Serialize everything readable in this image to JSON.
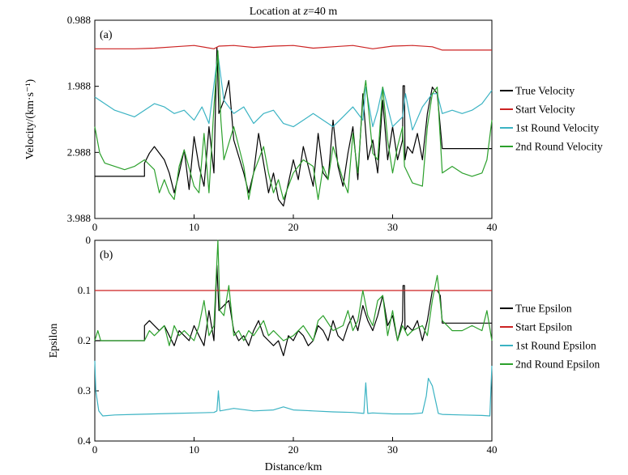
{
  "chart_data": {
    "title": "Location at z=40 m",
    "title_parts": {
      "prefix": "Location at ",
      "italic": "z",
      "suffix": "=40 m"
    },
    "xlabel": "Distance/km",
    "panels": [
      {
        "id": "velocity",
        "type": "line",
        "panel_label": "(a)",
        "ylabel": "Velocity/(km·s⁻¹)",
        "xlim": [
          0,
          40
        ],
        "ylim": [
          0.988,
          3.988
        ],
        "y_inverted": true,
        "xticks": [
          0,
          10,
          20,
          30,
          40
        ],
        "yticks": [
          0.988,
          1.988,
          2.988,
          3.988
        ],
        "ytick_labels": [
          "0.988",
          "1.988",
          "2.988",
          "3.988"
        ],
        "legend_position": "right",
        "series": [
          {
            "name": "True Velocity",
            "color": "#000000",
            "x": [
              0,
              5,
              5,
              5.5,
              6,
              7,
              7.5,
              8,
              8.5,
              9,
              9.5,
              10,
              10.5,
              11,
              11.5,
              12,
              12.3,
              12.5,
              13,
              13.5,
              14,
              15,
              15.5,
              16,
              16.5,
              17,
              17.5,
              18,
              18.5,
              19,
              20,
              20.5,
              21,
              21.5,
              22,
              22.5,
              23,
              23.5,
              24,
              24.5,
              25,
              25.5,
              26,
              26.5,
              27,
              27.5,
              28,
              28.5,
              29,
              29.5,
              30,
              30.5,
              31,
              31.05,
              31.1,
              31.2,
              31.25,
              31.5,
              32,
              32.5,
              33,
              33.5,
              34,
              34.5,
              35,
              40
            ],
            "values": [
              3.35,
              3.35,
              3.15,
              3.0,
              2.9,
              3.1,
              3.3,
              3.6,
              3.3,
              2.95,
              3.55,
              2.75,
              3.2,
              3.5,
              2.6,
              3.3,
              1.4,
              2.4,
              2.2,
              1.9,
              2.8,
              3.3,
              3.6,
              3.3,
              2.7,
              3.15,
              3.6,
              3.3,
              3.7,
              3.8,
              3.1,
              3.4,
              2.9,
              3.2,
              3.5,
              2.7,
              3.3,
              3.4,
              2.5,
              3.2,
              3.5,
              3.0,
              2.6,
              3.4,
              2.1,
              3.1,
              2.8,
              3.3,
              2.2,
              3.1,
              2.6,
              3.1,
              2.8,
              1.98,
              1.98,
              1.98,
              3.1,
              2.9,
              3.0,
              2.7,
              3.1,
              2.4,
              2.0,
              2.1,
              2.93,
              2.93
            ]
          },
          {
            "name": "Start Velocity",
            "color": "#cc2222",
            "x": [
              0,
              4,
              6,
              8,
              10,
              12,
              12.5,
              14,
              16,
              18,
              20,
              22,
              24,
              26,
              28,
              30,
              32,
              34,
              35,
              40
            ],
            "values": [
              1.42,
              1.42,
              1.41,
              1.39,
              1.37,
              1.42,
              1.38,
              1.37,
              1.4,
              1.38,
              1.37,
              1.41,
              1.39,
              1.37,
              1.42,
              1.38,
              1.37,
              1.39,
              1.44,
              1.44
            ]
          },
          {
            "name": "1st Round Velocity",
            "color": "#3bb3c3",
            "x": [
              0,
              1,
              2,
              3,
              4,
              5,
              6,
              7,
              8,
              9,
              10,
              10.8,
              11.5,
              12.4,
              13,
              14,
              15,
              16,
              17,
              18,
              19,
              20,
              21,
              22,
              23,
              24,
              25,
              26,
              27,
              27.3,
              28,
              28.5,
              29,
              30,
              31,
              31.3,
              32,
              33,
              33.5,
              34,
              34.5,
              35,
              36,
              37,
              38,
              39,
              40
            ],
            "values": [
              2.15,
              2.25,
              2.35,
              2.4,
              2.45,
              2.35,
              2.25,
              2.3,
              2.4,
              2.35,
              2.5,
              2.3,
              2.55,
              1.5,
              2.2,
              2.4,
              2.3,
              2.55,
              2.4,
              2.35,
              2.55,
              2.6,
              2.5,
              2.4,
              2.5,
              2.6,
              2.45,
              2.3,
              2.5,
              2.0,
              2.6,
              2.35,
              2.0,
              2.6,
              2.45,
              2.1,
              2.65,
              2.3,
              2.2,
              2.1,
              2.1,
              2.4,
              2.35,
              2.4,
              2.35,
              2.25,
              2.05
            ]
          },
          {
            "name": "2nd Round Velocity",
            "color": "#2ca02c",
            "x": [
              0,
              0.5,
              1,
              2,
              3,
              4,
              5,
              6,
              6.5,
              7,
              7.5,
              8,
              8.5,
              9,
              10,
              10.5,
              11,
              11.5,
              12,
              12.4,
              12.7,
              13,
              14,
              15,
              15.5,
              16,
              17,
              17.5,
              18,
              18.5,
              19,
              20,
              21,
              22,
              22.5,
              23,
              23.5,
              24,
              25,
              25.5,
              26,
              26.5,
              27,
              27.3,
              28,
              28.5,
              29,
              29.5,
              30,
              30.5,
              31,
              31.2,
              32,
              33,
              33.5,
              34,
              34.5,
              35,
              36,
              37,
              38,
              39,
              39.5,
              40
            ],
            "values": [
              2.6,
              3.0,
              3.15,
              3.2,
              3.25,
              3.2,
              3.1,
              3.25,
              3.6,
              3.4,
              3.6,
              3.7,
              3.2,
              2.95,
              3.5,
              3.6,
              2.7,
              3.6,
              2.3,
              1.45,
              2.5,
              3.1,
              2.6,
              3.2,
              3.7,
              3.3,
              2.9,
              3.3,
              3.6,
              3.4,
              3.7,
              3.3,
              3.1,
              3.2,
              3.7,
              3.2,
              3.4,
              2.9,
              3.4,
              3.6,
              2.7,
              3.3,
              2.2,
              1.9,
              3.0,
              3.1,
              2.0,
              2.8,
              3.3,
              2.9,
              2.6,
              3.2,
              3.45,
              3.5,
              2.6,
              2.1,
              2.0,
              3.3,
              3.2,
              3.3,
              3.35,
              3.3,
              3.1,
              2.5
            ]
          }
        ]
      },
      {
        "id": "epsilon",
        "type": "line",
        "panel_label": "(b)",
        "ylabel": "Epsilon",
        "xlim": [
          0,
          40
        ],
        "ylim": [
          0,
          0.4
        ],
        "y_inverted": true,
        "xticks": [
          0,
          10,
          20,
          30,
          40
        ],
        "yticks": [
          0,
          0.1,
          0.2,
          0.3,
          0.4
        ],
        "ytick_labels": [
          "0",
          "0.1",
          "0.2",
          "0.3",
          "0.4"
        ],
        "legend_position": "right",
        "series": [
          {
            "name": "True Epsilon",
            "color": "#000000",
            "x": [
              0,
              5,
              5,
              5.5,
              6,
              6.5,
              7,
              7.5,
              8,
              8.5,
              9,
              9.5,
              10,
              10.5,
              11,
              11.5,
              12,
              12.3,
              12.5,
              13,
              13.5,
              14,
              14.5,
              15,
              15.5,
              16,
              16.5,
              17,
              17.5,
              18,
              18.5,
              19,
              19.5,
              20,
              20.5,
              21,
              21.5,
              22,
              22.5,
              23,
              23.5,
              24,
              24.5,
              25,
              25.5,
              26,
              26.5,
              27,
              27.5,
              28,
              28.5,
              29,
              29.5,
              30,
              30.5,
              31,
              31.05,
              31.1,
              31.2,
              31.25,
              31.5,
              32,
              32.5,
              33,
              33.5,
              34,
              34.5,
              34.8,
              35,
              40
            ],
            "values": [
              0.2,
              0.2,
              0.17,
              0.16,
              0.17,
              0.18,
              0.17,
              0.19,
              0.21,
              0.18,
              0.19,
              0.2,
              0.17,
              0.19,
              0.21,
              0.14,
              0.2,
              0.05,
              0.14,
              0.13,
              0.12,
              0.18,
              0.2,
              0.19,
              0.21,
              0.18,
              0.16,
              0.19,
              0.2,
              0.21,
              0.2,
              0.23,
              0.19,
              0.2,
              0.18,
              0.19,
              0.21,
              0.2,
              0.17,
              0.18,
              0.2,
              0.16,
              0.19,
              0.2,
              0.17,
              0.15,
              0.18,
              0.13,
              0.16,
              0.18,
              0.15,
              0.11,
              0.17,
              0.15,
              0.2,
              0.16,
              0.09,
              0.09,
              0.09,
              0.18,
              0.17,
              0.18,
              0.16,
              0.2,
              0.16,
              0.1,
              0.1,
              0.11,
              0.165,
              0.165
            ]
          },
          {
            "name": "Start Epsilon",
            "color": "#cc2222",
            "x": [
              0,
              40
            ],
            "values": [
              0.1,
              0.1
            ]
          },
          {
            "name": "1st Round Epsilon",
            "color": "#3bb3c3",
            "x": [
              0,
              0.1,
              0.4,
              0.8,
              2,
              4,
              6,
              8,
              10,
              12,
              12.3,
              12.45,
              12.6,
              14,
              16,
              18,
              19,
              20,
              22,
              24,
              26,
              27.1,
              27.3,
              27.5,
              28,
              30,
              32,
              33,
              33.4,
              33.6,
              34,
              34.6,
              35,
              37,
              39,
              39.8,
              40
            ],
            "values": [
              0.24,
              0.3,
              0.34,
              0.35,
              0.348,
              0.347,
              0.346,
              0.345,
              0.344,
              0.343,
              0.34,
              0.3,
              0.34,
              0.335,
              0.34,
              0.338,
              0.332,
              0.338,
              0.34,
              0.342,
              0.343,
              0.345,
              0.284,
              0.345,
              0.344,
              0.346,
              0.346,
              0.344,
              0.31,
              0.275,
              0.29,
              0.345,
              0.347,
              0.348,
              0.349,
              0.35,
              0.25
            ]
          },
          {
            "name": "2nd Round Epsilon",
            "color": "#2ca02c",
            "x": [
              0,
              0.3,
              0.6,
              1,
              3,
              5,
              5.5,
              6,
              7,
              7.5,
              8,
              8.5,
              9,
              10,
              10.5,
              11,
              11.5,
              12,
              12.4,
              12.6,
              13,
              13.5,
              14,
              14.5,
              15,
              15.5,
              16,
              17,
              17.5,
              18,
              19,
              20,
              21,
              22,
              22.5,
              23,
              24,
              25,
              25.5,
              26,
              26.5,
              27,
              27.5,
              28,
              28.5,
              29,
              29.5,
              30,
              30.5,
              31,
              31.5,
              32,
              33,
              33.5,
              34,
              34.5,
              35,
              36,
              37,
              38,
              39,
              39.5,
              40
            ],
            "values": [
              0.2,
              0.18,
              0.2,
              0.2,
              0.2,
              0.2,
              0.18,
              0.19,
              0.17,
              0.21,
              0.17,
              0.19,
              0.18,
              0.2,
              0.17,
              0.12,
              0.19,
              0.17,
              0.0,
              0.14,
              0.15,
              0.09,
              0.19,
              0.18,
              0.2,
              0.18,
              0.19,
              0.16,
              0.19,
              0.18,
              0.2,
              0.19,
              0.17,
              0.2,
              0.16,
              0.15,
              0.18,
              0.17,
              0.14,
              0.18,
              0.16,
              0.1,
              0.15,
              0.17,
              0.12,
              0.11,
              0.19,
              0.14,
              0.2,
              0.17,
              0.19,
              0.18,
              0.17,
              0.19,
              0.12,
              0.07,
              0.16,
              0.18,
              0.18,
              0.17,
              0.18,
              0.14,
              0.2
            ]
          }
        ]
      }
    ]
  }
}
